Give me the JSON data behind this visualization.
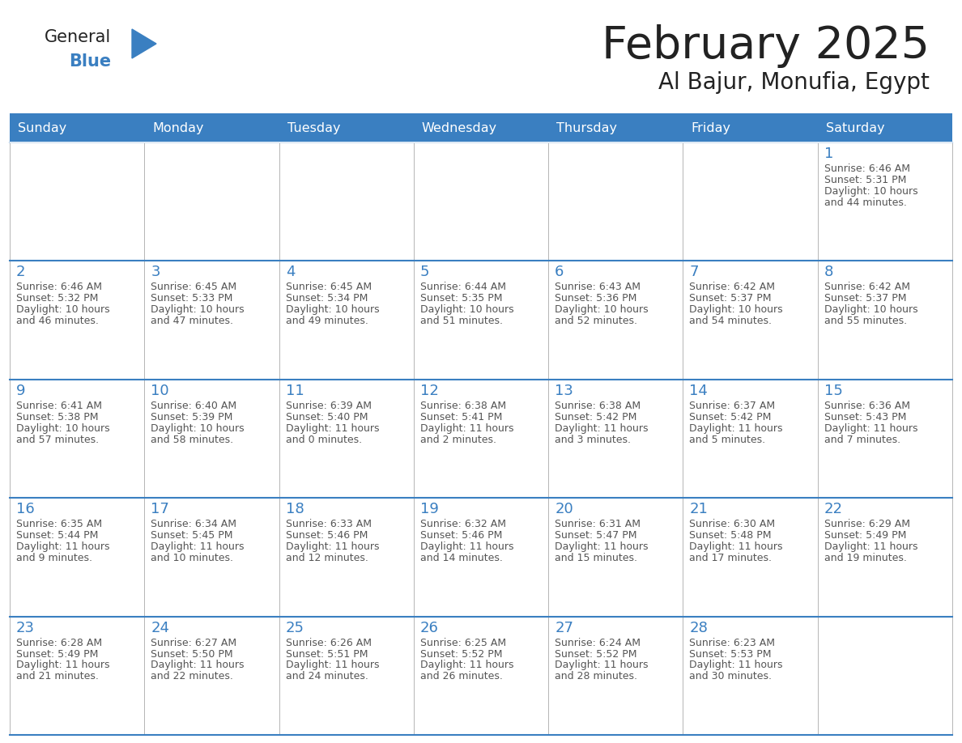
{
  "title": "February 2025",
  "subtitle": "Al Bajur, Monufia, Egypt",
  "days_of_week": [
    "Sunday",
    "Monday",
    "Tuesday",
    "Wednesday",
    "Thursday",
    "Friday",
    "Saturday"
  ],
  "header_bg": "#3a7fc1",
  "header_text": "#ffffff",
  "cell_bg": "#ffffff",
  "cell_border": "#3a7fc1",
  "day_num_color": "#3a7fc1",
  "info_color": "#555555",
  "title_color": "#222222",
  "subtitle_color": "#222222",
  "logo_general_color": "#222222",
  "logo_blue_color": "#3a7fc1",
  "grid_line_color": "#aaaaaa",
  "calendar_data": [
    [
      null,
      null,
      null,
      null,
      null,
      null,
      {
        "day": 1,
        "sunrise": "6:46 AM",
        "sunset": "5:31 PM",
        "daylight_h": "10 hours",
        "daylight_m": "and 44 minutes."
      }
    ],
    [
      {
        "day": 2,
        "sunrise": "6:46 AM",
        "sunset": "5:32 PM",
        "daylight_h": "10 hours",
        "daylight_m": "and 46 minutes."
      },
      {
        "day": 3,
        "sunrise": "6:45 AM",
        "sunset": "5:33 PM",
        "daylight_h": "10 hours",
        "daylight_m": "and 47 minutes."
      },
      {
        "day": 4,
        "sunrise": "6:45 AM",
        "sunset": "5:34 PM",
        "daylight_h": "10 hours",
        "daylight_m": "and 49 minutes."
      },
      {
        "day": 5,
        "sunrise": "6:44 AM",
        "sunset": "5:35 PM",
        "daylight_h": "10 hours",
        "daylight_m": "and 51 minutes."
      },
      {
        "day": 6,
        "sunrise": "6:43 AM",
        "sunset": "5:36 PM",
        "daylight_h": "10 hours",
        "daylight_m": "and 52 minutes."
      },
      {
        "day": 7,
        "sunrise": "6:42 AM",
        "sunset": "5:37 PM",
        "daylight_h": "10 hours",
        "daylight_m": "and 54 minutes."
      },
      {
        "day": 8,
        "sunrise": "6:42 AM",
        "sunset": "5:37 PM",
        "daylight_h": "10 hours",
        "daylight_m": "and 55 minutes."
      }
    ],
    [
      {
        "day": 9,
        "sunrise": "6:41 AM",
        "sunset": "5:38 PM",
        "daylight_h": "10 hours",
        "daylight_m": "and 57 minutes."
      },
      {
        "day": 10,
        "sunrise": "6:40 AM",
        "sunset": "5:39 PM",
        "daylight_h": "10 hours",
        "daylight_m": "and 58 minutes."
      },
      {
        "day": 11,
        "sunrise": "6:39 AM",
        "sunset": "5:40 PM",
        "daylight_h": "11 hours",
        "daylight_m": "and 0 minutes."
      },
      {
        "day": 12,
        "sunrise": "6:38 AM",
        "sunset": "5:41 PM",
        "daylight_h": "11 hours",
        "daylight_m": "and 2 minutes."
      },
      {
        "day": 13,
        "sunrise": "6:38 AM",
        "sunset": "5:42 PM",
        "daylight_h": "11 hours",
        "daylight_m": "and 3 minutes."
      },
      {
        "day": 14,
        "sunrise": "6:37 AM",
        "sunset": "5:42 PM",
        "daylight_h": "11 hours",
        "daylight_m": "and 5 minutes."
      },
      {
        "day": 15,
        "sunrise": "6:36 AM",
        "sunset": "5:43 PM",
        "daylight_h": "11 hours",
        "daylight_m": "and 7 minutes."
      }
    ],
    [
      {
        "day": 16,
        "sunrise": "6:35 AM",
        "sunset": "5:44 PM",
        "daylight_h": "11 hours",
        "daylight_m": "and 9 minutes."
      },
      {
        "day": 17,
        "sunrise": "6:34 AM",
        "sunset": "5:45 PM",
        "daylight_h": "11 hours",
        "daylight_m": "and 10 minutes."
      },
      {
        "day": 18,
        "sunrise": "6:33 AM",
        "sunset": "5:46 PM",
        "daylight_h": "11 hours",
        "daylight_m": "and 12 minutes."
      },
      {
        "day": 19,
        "sunrise": "6:32 AM",
        "sunset": "5:46 PM",
        "daylight_h": "11 hours",
        "daylight_m": "and 14 minutes."
      },
      {
        "day": 20,
        "sunrise": "6:31 AM",
        "sunset": "5:47 PM",
        "daylight_h": "11 hours",
        "daylight_m": "and 15 minutes."
      },
      {
        "day": 21,
        "sunrise": "6:30 AM",
        "sunset": "5:48 PM",
        "daylight_h": "11 hours",
        "daylight_m": "and 17 minutes."
      },
      {
        "day": 22,
        "sunrise": "6:29 AM",
        "sunset": "5:49 PM",
        "daylight_h": "11 hours",
        "daylight_m": "and 19 minutes."
      }
    ],
    [
      {
        "day": 23,
        "sunrise": "6:28 AM",
        "sunset": "5:49 PM",
        "daylight_h": "11 hours",
        "daylight_m": "and 21 minutes."
      },
      {
        "day": 24,
        "sunrise": "6:27 AM",
        "sunset": "5:50 PM",
        "daylight_h": "11 hours",
        "daylight_m": "and 22 minutes."
      },
      {
        "day": 25,
        "sunrise": "6:26 AM",
        "sunset": "5:51 PM",
        "daylight_h": "11 hours",
        "daylight_m": "and 24 minutes."
      },
      {
        "day": 26,
        "sunrise": "6:25 AM",
        "sunset": "5:52 PM",
        "daylight_h": "11 hours",
        "daylight_m": "and 26 minutes."
      },
      {
        "day": 27,
        "sunrise": "6:24 AM",
        "sunset": "5:52 PM",
        "daylight_h": "11 hours",
        "daylight_m": "and 28 minutes."
      },
      {
        "day": 28,
        "sunrise": "6:23 AM",
        "sunset": "5:53 PM",
        "daylight_h": "11 hours",
        "daylight_m": "and 30 minutes."
      },
      null
    ]
  ]
}
